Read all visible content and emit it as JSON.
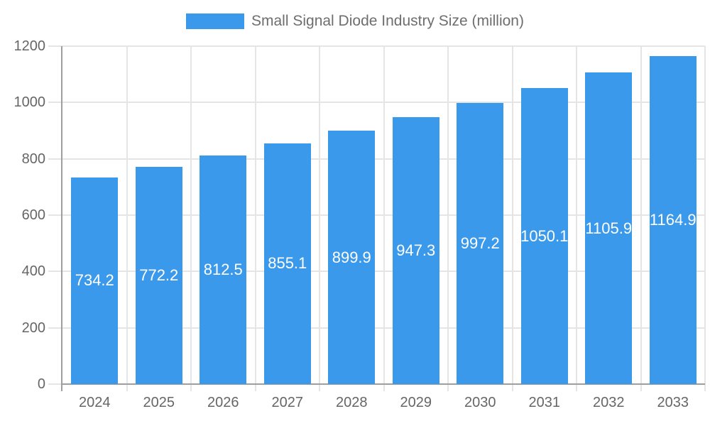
{
  "chart_data": {
    "type": "bar",
    "legend_label": "Small Signal Diode Industry Size (million)",
    "categories": [
      "2024",
      "2025",
      "2026",
      "2027",
      "2028",
      "2029",
      "2030",
      "2031",
      "2032",
      "2033"
    ],
    "series": [
      {
        "name": "Small Signal Diode Industry Size (million)",
        "values": [
          734.2,
          772.2,
          812.5,
          855.1,
          899.9,
          947.3,
          997.2,
          1050.1,
          1105.9,
          1164.9
        ]
      }
    ],
    "value_labels": [
      "734.2",
      "772.2",
      "812.5",
      "855.1",
      "899.9",
      "947.3",
      "997.2",
      "1050.1",
      "1105.9",
      "1164.9"
    ],
    "xlabel": "",
    "ylabel": "",
    "ylim": [
      0,
      1200
    ],
    "yticks": [
      0,
      200,
      400,
      600,
      800,
      1000,
      1200
    ],
    "grid": true,
    "legend_position": "top",
    "colors": {
      "bar": "#3B99EC",
      "grid": "#E5E5E5",
      "axis": "#9E9E9E",
      "tick_label": "#666666",
      "legend_text": "#6E6E6E",
      "value_label": "#FFFFFF",
      "background": "#FFFFFF"
    }
  }
}
